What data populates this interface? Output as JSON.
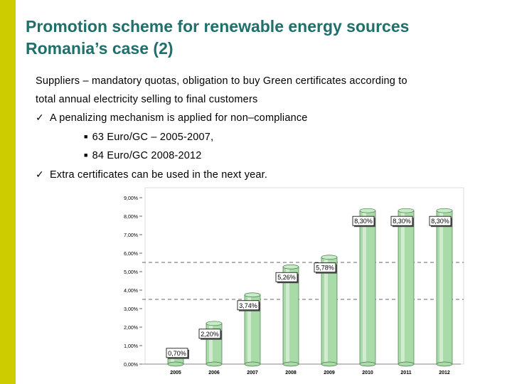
{
  "slide": {
    "accent_color": "#cccc00",
    "title_color": "#1f6f6a",
    "title_line1": "Promotion scheme for renewable energy sources",
    "title_line2": "Romania’s case (2)"
  },
  "content": {
    "line1": "Suppliers – mandatory quotas, obligation to buy Green certificates according to",
    "line2": "total annual electricity selling to final customers",
    "check1": "A penalizing mechanism is applied for non–compliance",
    "sub1": "63 Euro/GC – 2005-2007,",
    "sub2": "84 Euro/GC 2008-2012",
    "check2": "Extra certificates can be used in the next year."
  },
  "chart_data": {
    "type": "bar",
    "categories": [
      "2005",
      "2006",
      "2007",
      "2008",
      "2009",
      "2010",
      "2011",
      "2012"
    ],
    "values": [
      0.7,
      2.2,
      3.74,
      5.26,
      5.78,
      8.3,
      8.3,
      8.3
    ],
    "data_labels": [
      "0,70%",
      "2,20%",
      "3,74%",
      "5,26%",
      "5,78%",
      "8,30%",
      "8,30%",
      "8,30%"
    ],
    "ylim": [
      0,
      9
    ],
    "yticks": [
      "0,00%",
      "1,00%",
      "2,00%",
      "3,00%",
      "4,00%",
      "5,00%",
      "6,00%",
      "7,00%",
      "8,00%",
      "9,00%"
    ],
    "title": "",
    "xlabel": "",
    "ylabel": "",
    "bar_color": "#a9dba9"
  }
}
